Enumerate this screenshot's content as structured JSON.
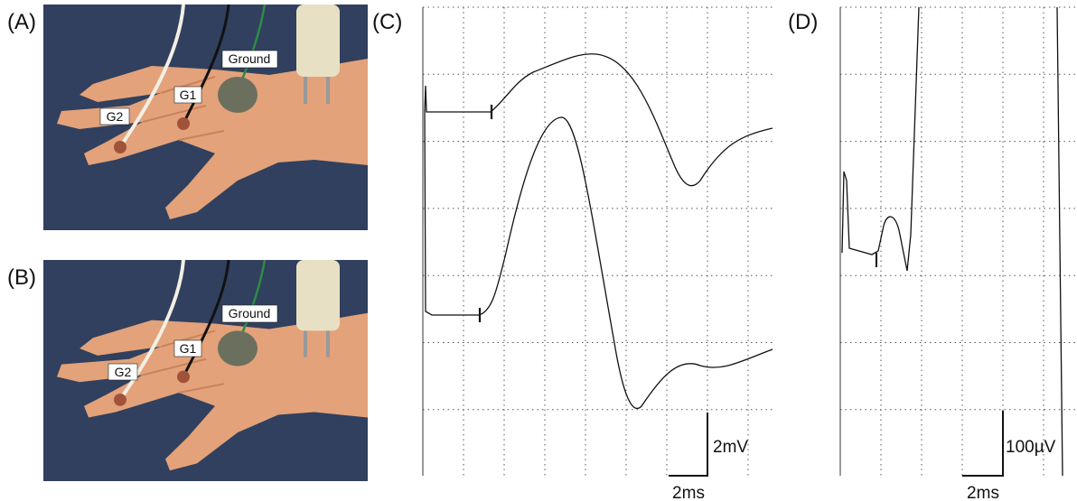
{
  "panels": [
    {
      "label": "(A)",
      "electrodes": {
        "ground": "Ground",
        "g1": "G1",
        "g2": "G2"
      }
    },
    {
      "label": "(B)",
      "electrodes": {
        "ground": "Ground",
        "g1": "G1",
        "g2": "G2"
      }
    },
    {
      "label": "(C)",
      "amplitude_scale": "2mV",
      "time_scale": "2ms"
    },
    {
      "label": "(D)",
      "amplitude_scale": "100µV",
      "time_scale": "2ms"
    }
  ]
}
